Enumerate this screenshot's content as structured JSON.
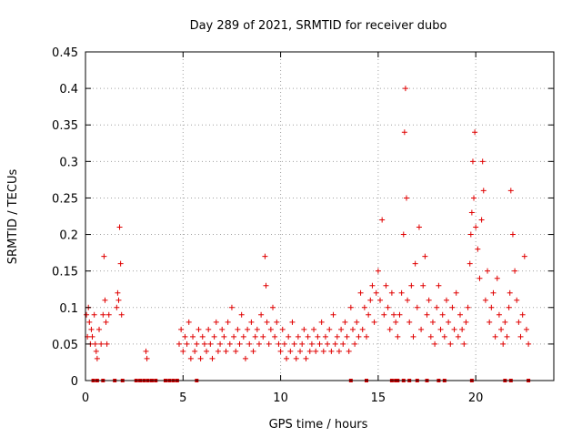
{
  "chart_data": {
    "type": "scatter",
    "title": "Day 289 of 2021, SRMTID for receiver dubo",
    "xlabel": "GPS time / hours",
    "ylabel": "SRMTID / TECUs",
    "xlim": [
      0,
      24
    ],
    "ylim": [
      0,
      0.45
    ],
    "xticks": [
      0,
      5,
      10,
      15,
      20
    ],
    "xtick_labels": [
      "0",
      "5",
      "10",
      "15",
      "20"
    ],
    "yticks": [
      0,
      0.05,
      0.1,
      0.15,
      0.2,
      0.25,
      0.3,
      0.35,
      0.4,
      0.45
    ],
    "ytick_labels": [
      "0",
      "0.05",
      "0.1",
      "0.15",
      "0.2",
      "0.25",
      "0.3",
      "0.35",
      "0.4",
      "0.45"
    ],
    "grid": true,
    "marker": "plus",
    "color": "#e00000",
    "series": [
      {
        "name": "SRMTID",
        "x": [
          0.05,
          0.1,
          0.15,
          0.2,
          0.25,
          0.3,
          0.35,
          0.45,
          0.5,
          0.55,
          0.6,
          0.7,
          0.8,
          0.9,
          0.95,
          1.0,
          1.05,
          1.1,
          1.2,
          1.6,
          1.65,
          1.7,
          1.75,
          1.8,
          1.85,
          3.1,
          3.15,
          4.8,
          4.9,
          5.0,
          5.1,
          5.2,
          5.3,
          5.4,
          5.5,
          5.6,
          5.7,
          5.8,
          5.9,
          6.0,
          6.1,
          6.2,
          6.3,
          6.4,
          6.5,
          6.6,
          6.7,
          6.8,
          6.9,
          7.0,
          7.1,
          7.2,
          7.3,
          7.4,
          7.5,
          7.6,
          7.7,
          7.8,
          7.9,
          8.0,
          8.1,
          8.2,
          8.3,
          8.4,
          8.5,
          8.6,
          8.7,
          8.8,
          8.9,
          9.0,
          9.1,
          9.2,
          9.25,
          9.3,
          9.4,
          9.5,
          9.6,
          9.7,
          9.8,
          9.9,
          10.0,
          10.1,
          10.2,
          10.3,
          10.4,
          10.5,
          10.6,
          10.7,
          10.8,
          10.9,
          11.0,
          11.1,
          11.2,
          11.3,
          11.4,
          11.5,
          11.6,
          11.7,
          11.8,
          11.9,
          12.0,
          12.1,
          12.2,
          12.3,
          12.4,
          12.5,
          12.6,
          12.7,
          12.8,
          12.9,
          13.0,
          13.1,
          13.2,
          13.3,
          13.4,
          13.5,
          13.6,
          13.7,
          13.8,
          13.9,
          14.0,
          14.1,
          14.2,
          14.3,
          14.4,
          14.5,
          14.6,
          14.7,
          14.8,
          14.9,
          15.0,
          15.1,
          15.2,
          15.3,
          15.4,
          15.5,
          15.6,
          15.7,
          15.8,
          15.9,
          16.0,
          16.1,
          16.2,
          16.3,
          16.35,
          16.4,
          16.45,
          16.5,
          16.6,
          16.7,
          16.8,
          16.9,
          17.0,
          17.1,
          17.2,
          17.3,
          17.4,
          17.5,
          17.6,
          17.7,
          17.8,
          17.9,
          18.0,
          18.1,
          18.2,
          18.3,
          18.4,
          18.5,
          18.6,
          18.7,
          18.8,
          18.9,
          19.0,
          19.1,
          19.2,
          19.3,
          19.4,
          19.5,
          19.6,
          19.7,
          19.75,
          19.8,
          19.85,
          19.9,
          19.95,
          20.0,
          20.1,
          20.2,
          20.3,
          20.35,
          20.4,
          20.5,
          20.6,
          20.7,
          20.8,
          20.9,
          21.0,
          21.1,
          21.2,
          21.3,
          21.4,
          21.5,
          21.6,
          21.7,
          21.75,
          21.8,
          21.9,
          22.0,
          22.1,
          22.2,
          22.3,
          22.4,
          22.5,
          22.6,
          22.7
        ],
        "y": [
          0.09,
          0.06,
          0.1,
          0.08,
          0.05,
          0.07,
          0.06,
          0.09,
          0.05,
          0.04,
          0.03,
          0.07,
          0.05,
          0.09,
          0.17,
          0.11,
          0.08,
          0.05,
          0.09,
          0.1,
          0.12,
          0.11,
          0.21,
          0.16,
          0.09,
          0.04,
          0.03,
          0.05,
          0.07,
          0.04,
          0.06,
          0.05,
          0.08,
          0.03,
          0.06,
          0.04,
          0.05,
          0.07,
          0.03,
          0.06,
          0.05,
          0.04,
          0.07,
          0.05,
          0.03,
          0.06,
          0.08,
          0.04,
          0.05,
          0.07,
          0.06,
          0.04,
          0.08,
          0.05,
          0.1,
          0.06,
          0.04,
          0.07,
          0.05,
          0.09,
          0.06,
          0.03,
          0.07,
          0.05,
          0.08,
          0.04,
          0.06,
          0.07,
          0.05,
          0.09,
          0.06,
          0.17,
          0.13,
          0.08,
          0.05,
          0.07,
          0.1,
          0.06,
          0.08,
          0.05,
          0.04,
          0.07,
          0.05,
          0.03,
          0.06,
          0.04,
          0.08,
          0.05,
          0.03,
          0.06,
          0.04,
          0.05,
          0.07,
          0.03,
          0.06,
          0.04,
          0.05,
          0.07,
          0.04,
          0.06,
          0.05,
          0.08,
          0.04,
          0.06,
          0.05,
          0.07,
          0.04,
          0.09,
          0.05,
          0.06,
          0.04,
          0.07,
          0.05,
          0.08,
          0.06,
          0.04,
          0.1,
          0.07,
          0.05,
          0.08,
          0.06,
          0.12,
          0.07,
          0.1,
          0.06,
          0.09,
          0.11,
          0.13,
          0.08,
          0.12,
          0.15,
          0.11,
          0.22,
          0.09,
          0.13,
          0.1,
          0.07,
          0.12,
          0.09,
          0.08,
          0.06,
          0.09,
          0.12,
          0.2,
          0.34,
          0.4,
          0.25,
          0.11,
          0.08,
          0.13,
          0.06,
          0.16,
          0.1,
          0.21,
          0.07,
          0.13,
          0.17,
          0.09,
          0.11,
          0.06,
          0.08,
          0.05,
          0.1,
          0.13,
          0.07,
          0.09,
          0.06,
          0.11,
          0.08,
          0.05,
          0.1,
          0.07,
          0.12,
          0.06,
          0.09,
          0.07,
          0.05,
          0.08,
          0.1,
          0.16,
          0.2,
          0.23,
          0.3,
          0.25,
          0.34,
          0.21,
          0.18,
          0.14,
          0.22,
          0.3,
          0.26,
          0.11,
          0.15,
          0.08,
          0.1,
          0.12,
          0.06,
          0.14,
          0.09,
          0.07,
          0.05,
          0.08,
          0.06,
          0.1,
          0.12,
          0.26,
          0.2,
          0.15,
          0.11,
          0.08,
          0.06,
          0.09,
          0.17,
          0.07,
          0.05
        ],
        "zeros_x": [
          0.4,
          0.6,
          0.9,
          1.5,
          1.9,
          2.6,
          2.8,
          3.0,
          3.2,
          3.4,
          3.6,
          4.1,
          4.3,
          4.5,
          4.7,
          5.7,
          13.6,
          14.4,
          15.7,
          15.9,
          16.0,
          16.3,
          16.6,
          17.0,
          17.5,
          18.1,
          18.4,
          19.8,
          21.5,
          21.8,
          22.7
        ]
      }
    ]
  }
}
